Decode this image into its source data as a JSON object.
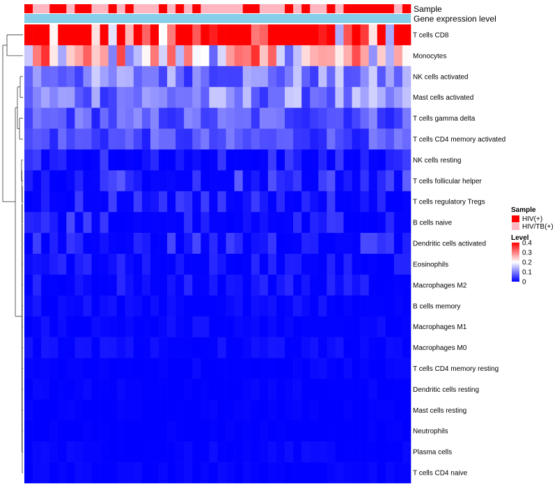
{
  "chart_data": {
    "type": "heatmap",
    "title": "",
    "annotation_labels": [
      "Sample",
      "Gene expression level"
    ],
    "row_labels": [
      "T cells CD8",
      "Monocytes",
      "NK cells activated",
      "Mast cells activated",
      "T cells gamma delta",
      "T cells CD4 memory activated",
      "NK cells resting",
      "T cells follicular helper",
      "T cells regulatory  Tregs",
      "B cells naive",
      "Dendritic cells activated",
      "Eosinophils",
      "Macrophages M2",
      "B cells memory",
      "Macrophages M1",
      "Macrophages M0",
      "T cells CD4 memory resting",
      "Dendritic cells resting",
      "Mast cells resting",
      "Neutrophils",
      "Plasma cells",
      "T cells CD4 naive"
    ],
    "n_samples": 46,
    "sample_groups": [
      0,
      1,
      1,
      0,
      0,
      1,
      0,
      0,
      1,
      1,
      0,
      1,
      0,
      1,
      1,
      1,
      0,
      1,
      0,
      1,
      0,
      1,
      1,
      1,
      1,
      1,
      0,
      0,
      1,
      1,
      1,
      0,
      1,
      0,
      1,
      1,
      0,
      1,
      0,
      0,
      0,
      0,
      0,
      0,
      1,
      0
    ],
    "rows_mean": [
      0.36,
      0.22,
      0.1,
      0.1,
      0.07,
      0.06,
      0.03,
      0.045,
      0.03,
      0.035,
      0.035,
      0.02,
      0.02,
      0.012,
      0.01,
      0.012,
      0.006,
      0.005,
      0.003,
      0.002,
      0.008,
      0.005
    ],
    "legend": {
      "sample_title": "Sample",
      "sample_items": [
        {
          "label": "HIV(+)",
          "color": "#FF0000"
        },
        {
          "label": "HIV/TB(+)",
          "color": "#FFB6C1"
        }
      ],
      "level_title": "Level",
      "level_ticks": [
        "0.4",
        "0.3",
        "0.2",
        "0.1",
        "0"
      ],
      "level_values": [
        0.4,
        0.3,
        0.2,
        0.1,
        0
      ],
      "level_range": [
        0,
        0.4
      ]
    },
    "colors": {
      "low": "#0000FF",
      "mid": "#FFFFFF",
      "high": "#FF0000",
      "annotation_bar": "#87CEEB"
    }
  }
}
